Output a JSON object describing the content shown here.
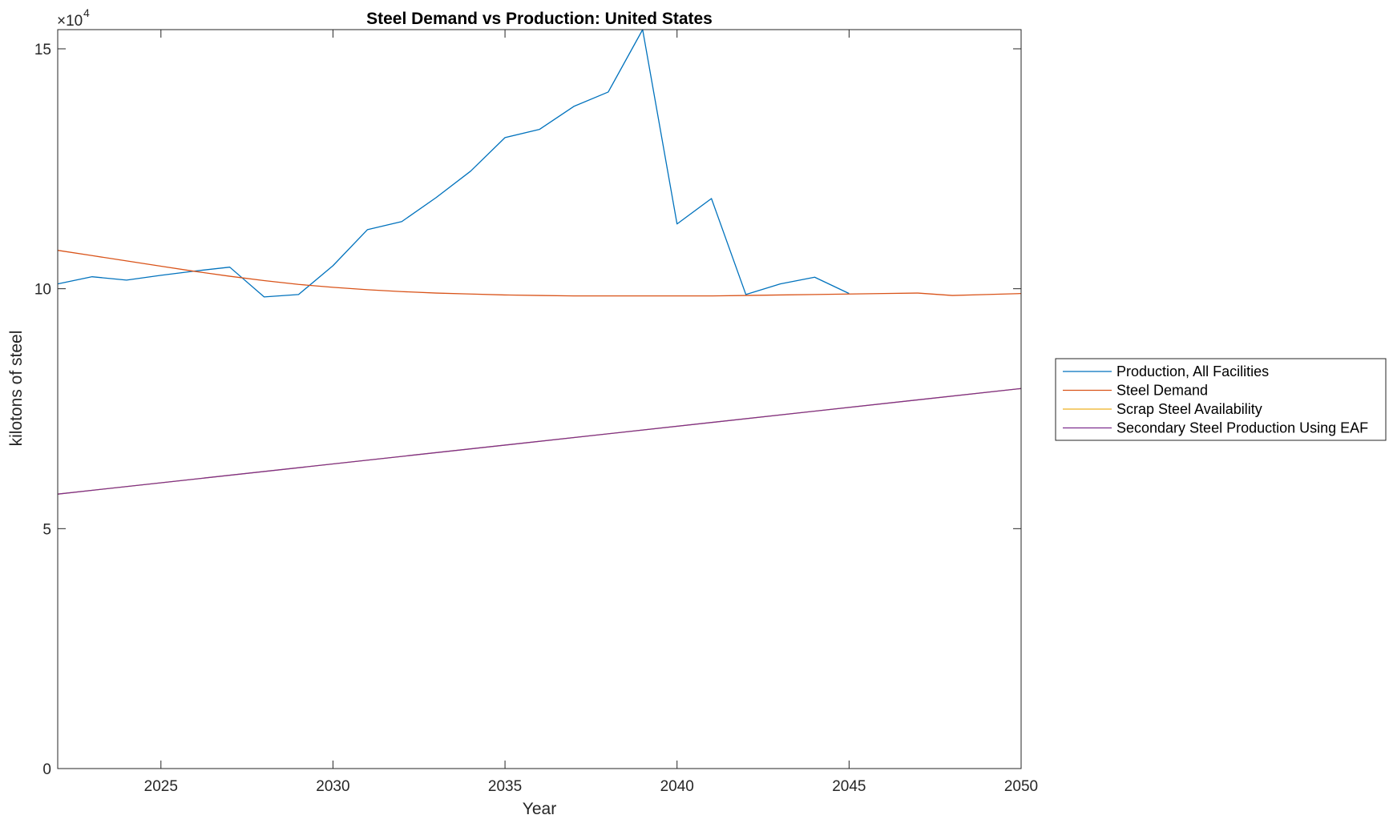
{
  "chart_data": {
    "type": "line",
    "title": "Steel Demand vs Production: United States",
    "xlabel": "Year",
    "ylabel": "kilotons of steel",
    "y_exponent_label": "×10",
    "y_exponent_power": "4",
    "xlim": [
      2022,
      2050
    ],
    "ylim": [
      0,
      154000
    ],
    "x_ticks": [
      2025,
      2030,
      2035,
      2040,
      2045,
      2050
    ],
    "x_tick_labels": [
      "2025",
      "2030",
      "2035",
      "2040",
      "2045",
      "2050"
    ],
    "y_ticks": [
      0,
      50000,
      100000,
      150000
    ],
    "y_tick_labels": [
      "0",
      "5",
      "10",
      "15"
    ],
    "grid": false,
    "legend_position": "outside-right",
    "series": [
      {
        "name": "Production, All Facilities",
        "color": "#0072BD",
        "x": [
          2022,
          2023,
          2024,
          2025,
          2026,
          2027,
          2028,
          2029,
          2030,
          2031,
          2032,
          2033,
          2034,
          2035,
          2036,
          2037,
          2038,
          2039,
          2040,
          2041,
          2042,
          2043,
          2044,
          2045
        ],
        "y": [
          101000,
          102500,
          101800,
          102800,
          103700,
          104500,
          98300,
          98800,
          104800,
          112300,
          114000,
          119000,
          124500,
          131500,
          133200,
          138000,
          141000,
          154000,
          113500,
          118800,
          98800,
          101000,
          102400,
          99000
        ]
      },
      {
        "name": "Steel Demand",
        "color": "#D95319",
        "x": [
          2022,
          2023,
          2024,
          2025,
          2026,
          2027,
          2028,
          2029,
          2030,
          2031,
          2032,
          2033,
          2034,
          2035,
          2036,
          2037,
          2038,
          2039,
          2040,
          2041,
          2042,
          2043,
          2044,
          2045,
          2046,
          2047,
          2048,
          2049,
          2050
        ],
        "y": [
          108000,
          106900,
          105800,
          104700,
          103600,
          102600,
          101700,
          100900,
          100300,
          99800,
          99400,
          99100,
          98900,
          98700,
          98600,
          98500,
          98500,
          98500,
          98500,
          98500,
          98600,
          98700,
          98800,
          98900,
          99000,
          99100,
          98600,
          98800,
          99000
        ]
      },
      {
        "name": "Scrap Steel Availability",
        "color": "#EDB120",
        "x": [
          2022,
          2050
        ],
        "y": [
          57200,
          79200
        ]
      },
      {
        "name": "Secondary Steel Production Using EAF",
        "color": "#7E2F8E",
        "x": [
          2022,
          2050
        ],
        "y": [
          57200,
          79200
        ]
      }
    ]
  }
}
